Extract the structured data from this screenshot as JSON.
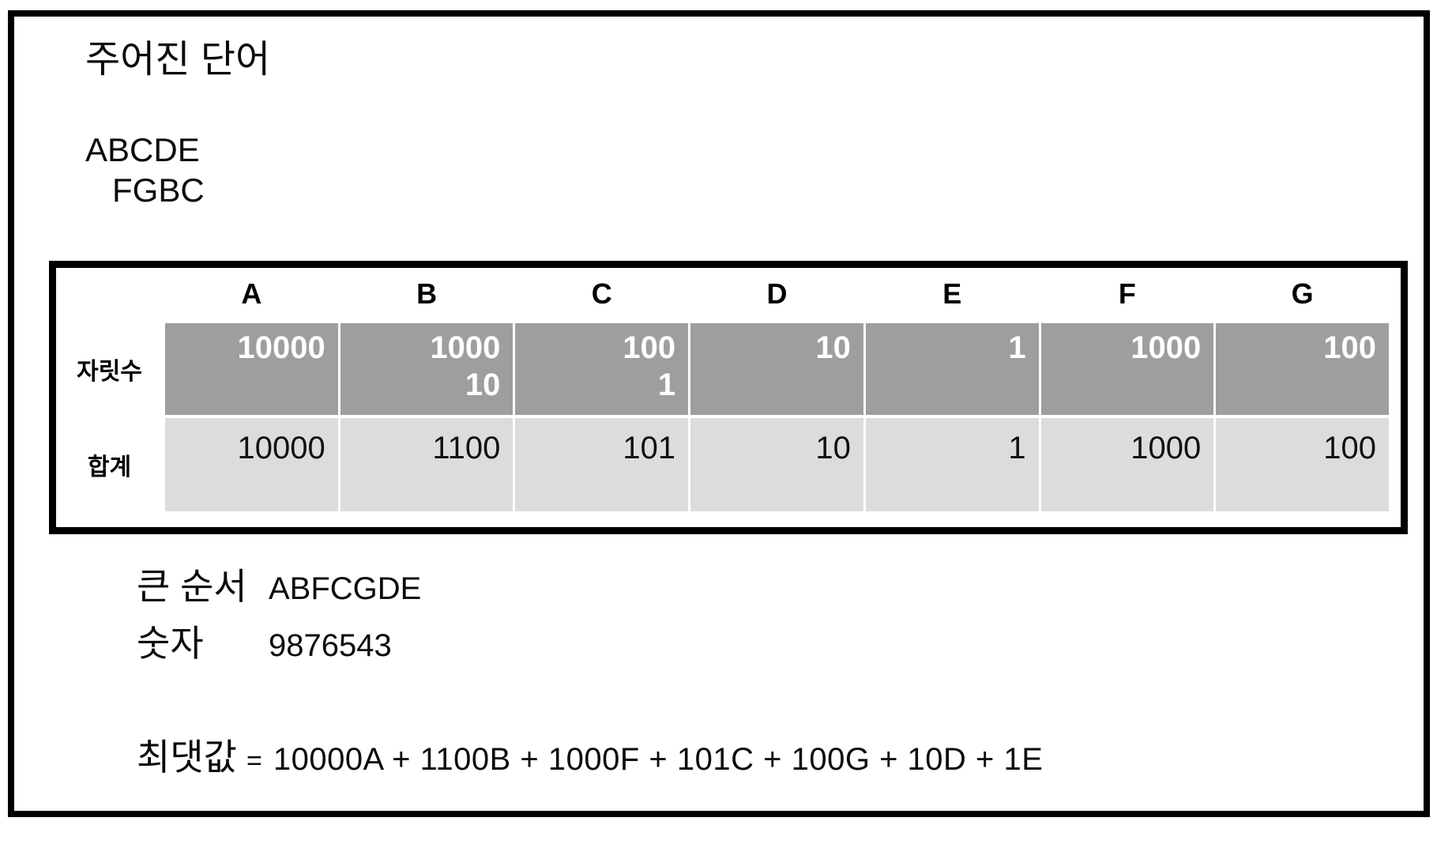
{
  "panel": {
    "title": "주어진 단어",
    "words": [
      "ABCDE",
      "FGBC"
    ]
  },
  "table": {
    "columns": [
      "A",
      "B",
      "C",
      "D",
      "E",
      "F",
      "G"
    ],
    "row_labels": {
      "place": "자릿수",
      "sum": "합계"
    },
    "place_values": [
      [
        "10000"
      ],
      [
        "1000",
        "10"
      ],
      [
        "100",
        "1"
      ],
      [
        "10"
      ],
      [
        "1"
      ],
      [
        "1000"
      ],
      [
        "100"
      ]
    ],
    "sum_values": [
      "10000",
      "1100",
      "101",
      "10",
      "1",
      "1000",
      "100"
    ]
  },
  "results": {
    "order_label": "큰 순서",
    "order_value": "ABFCGDE",
    "digits_label": "숫자",
    "digits_value": "9876543",
    "max_label": "최댓값",
    "equals": "=",
    "max_expression": "10000A + 1100B + 1000F + 101C + 100G + 10D + 1E"
  },
  "colors": {
    "border": "#000000",
    "dark_row_bg": "#9e9e9e",
    "dark_row_text": "#ffffff",
    "light_row_bg": "#dcdcdc",
    "text": "#0b0b0b"
  }
}
